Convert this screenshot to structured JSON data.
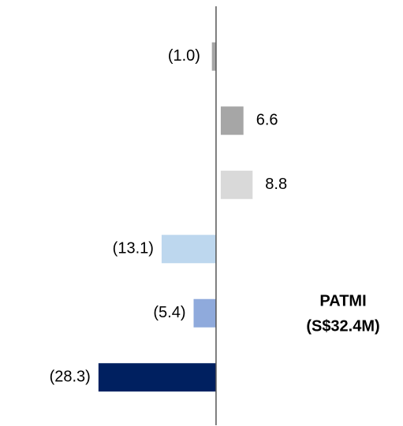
{
  "chart_data": {
    "type": "bar",
    "orientation": "horizontal",
    "categories": [
      null,
      null,
      null,
      null,
      null,
      null
    ],
    "values": [
      -1.0,
      6.6,
      8.8,
      -13.1,
      -5.4,
      -28.3
    ],
    "value_labels": [
      "(1.0)",
      "6.6",
      "8.8",
      "(13.1)",
      "(5.4)",
      "(28.3)"
    ],
    "colors": [
      "#a6a6a6",
      "#a6a6a6",
      "#d9d9d9",
      "#bdd7ee",
      "#8faadc",
      "#002060"
    ],
    "xlim": [
      -52,
      45
    ],
    "annotations": [
      "PATMI",
      "(S$32.4M)"
    ]
  }
}
